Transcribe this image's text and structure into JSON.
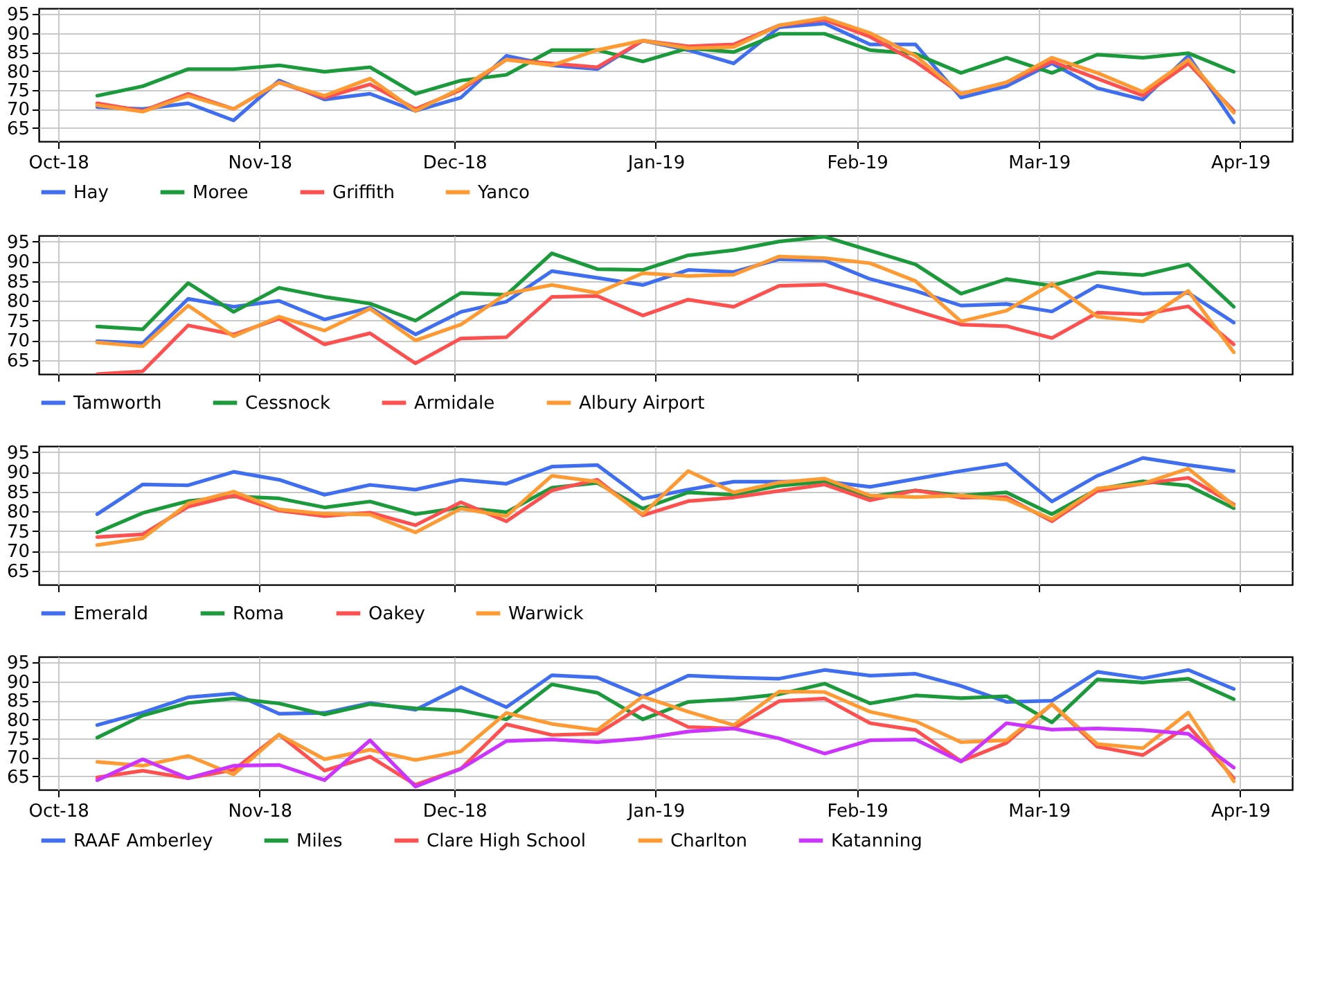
{
  "chart_data": [
    {
      "type": "line",
      "x": [
        "2018-10-07",
        "2018-10-14",
        "2018-10-21",
        "2018-10-28",
        "2018-11-04",
        "2018-11-11",
        "2018-11-18",
        "2018-11-25",
        "2018-12-02",
        "2018-12-09",
        "2018-12-16",
        "2018-12-23",
        "2018-12-30",
        "2019-01-06",
        "2019-01-13",
        "2019-01-20",
        "2019-01-27",
        "2019-02-03",
        "2019-02-10",
        "2019-02-17",
        "2019-02-24",
        "2019-03-03",
        "2019-03-10",
        "2019-03-17",
        "2019-03-24",
        "2019-03-31"
      ],
      "series": [
        {
          "name": "Hay",
          "color": "#3f6ff0",
          "values": [
            70.5,
            70,
            71.5,
            67,
            77.5,
            72.5,
            74,
            69.5,
            73,
            84,
            81.5,
            80.5,
            88,
            85.5,
            82,
            91.5,
            92.5,
            87,
            87,
            73,
            76,
            82,
            75.5,
            72.5,
            84,
            66.5
          ]
        },
        {
          "name": "Moree",
          "color": "#1a9a3a",
          "values": [
            73.5,
            76,
            80.5,
            80.5,
            81.5,
            79.8,
            81,
            74,
            77.5,
            79,
            85.5,
            85.5,
            82.5,
            86,
            85,
            89.8,
            89.8,
            85.5,
            84.5,
            79.5,
            83.5,
            79.5,
            84.3,
            83.5,
            84.7,
            79.8
          ]
        },
        {
          "name": "Griffith",
          "color": "#ff5050",
          "values": [
            71.5,
            69.5,
            74,
            70,
            77,
            73,
            76.5,
            70,
            75,
            83,
            82,
            81,
            88,
            86.5,
            87,
            92,
            93.5,
            89,
            82.5,
            74,
            77,
            82.5,
            78,
            73.5,
            82,
            69.5
          ]
        },
        {
          "name": "Yanco",
          "color": "#ff9a33",
          "values": [
            71,
            69.3,
            73.5,
            70,
            77,
            73.5,
            78,
            69.5,
            75.5,
            83,
            81.5,
            85.5,
            88,
            86,
            86.3,
            92,
            94,
            90,
            84,
            74,
            77,
            83.5,
            79.5,
            74.5,
            83,
            69
          ]
        }
      ],
      "xlim": [
        "2018-09-28",
        "2019-04-09"
      ],
      "ylim": [
        61.5,
        96.5
      ],
      "xticks": [
        {
          "value": "2018-10-01",
          "label": "Oct-18"
        },
        {
          "value": "2018-11-01",
          "label": "Nov-18"
        },
        {
          "value": "2018-12-01",
          "label": "Dec-18"
        },
        {
          "value": "2019-01-01",
          "label": "Jan-19"
        },
        {
          "value": "2019-02-01",
          "label": "Feb-19"
        },
        {
          "value": "2019-03-01",
          "label": "Mar-19"
        },
        {
          "value": "2019-04-01",
          "label": "Apr-19"
        }
      ],
      "yticks": [
        65,
        70,
        75,
        80,
        85,
        90,
        95
      ],
      "grid": true,
      "legend": "bottom"
    },
    {
      "type": "line",
      "x": [
        "2018-10-07",
        "2018-10-14",
        "2018-10-21",
        "2018-10-28",
        "2018-11-04",
        "2018-11-11",
        "2018-11-18",
        "2018-11-25",
        "2018-12-02",
        "2018-12-09",
        "2018-12-16",
        "2018-12-23",
        "2018-12-30",
        "2019-01-06",
        "2019-01-13",
        "2019-01-20",
        "2019-01-27",
        "2019-02-03",
        "2019-02-10",
        "2019-02-17",
        "2019-02-24",
        "2019-03-03",
        "2019-03-10",
        "2019-03-17",
        "2019-03-24",
        "2019-03-31"
      ],
      "series": [
        {
          "name": "Tamworth",
          "color": "#3f6ff0",
          "values": [
            69.8,
            69.3,
            80.5,
            78.5,
            80,
            75.3,
            78.3,
            71.5,
            77.2,
            79.8,
            87.5,
            85.8,
            84,
            87.8,
            87.3,
            90.5,
            90.2,
            85.5,
            82.5,
            78.8,
            79.2,
            77.3,
            83.8,
            81.8,
            82,
            74.5
          ]
        },
        {
          "name": "Cessnock",
          "color": "#1a9a3a",
          "values": [
            73.5,
            72.8,
            84.5,
            77.2,
            83.3,
            81,
            79.3,
            75,
            82,
            81.5,
            92,
            88,
            87.8,
            91.5,
            92.8,
            95,
            96.2,
            92.7,
            89.2,
            81.8,
            85.5,
            83.8,
            87.2,
            86.5,
            89.2,
            78.5
          ]
        },
        {
          "name": "Armidale",
          "color": "#ff5050",
          "values": [
            61.5,
            62.2,
            73.8,
            71.5,
            75.5,
            69,
            71.8,
            64.2,
            70.5,
            70.8,
            81,
            81.2,
            76.3,
            80.3,
            78.5,
            83.8,
            84.1,
            81,
            77.5,
            74,
            73.6,
            70.6,
            77,
            76.6,
            78.6,
            69
          ]
        },
        {
          "name": "Albury Airport",
          "color": "#ff9a33",
          "values": [
            69.5,
            68.5,
            78.8,
            71,
            76,
            72.5,
            78,
            70,
            74,
            81.8,
            84,
            82,
            87,
            86.3,
            86.6,
            91.2,
            90.8,
            89.5,
            85,
            74.8,
            77.5,
            84.3,
            76,
            74.8,
            82.5,
            67
          ]
        }
      ],
      "xlim": [
        "2018-09-28",
        "2019-04-09"
      ],
      "ylim": [
        61.5,
        96.5
      ],
      "xticks": [
        {
          "value": "2018-10-01",
          "label": null
        },
        {
          "value": "2018-11-01",
          "label": null
        },
        {
          "value": "2018-12-01",
          "label": null
        },
        {
          "value": "2019-01-01",
          "label": null
        },
        {
          "value": "2019-02-01",
          "label": null
        },
        {
          "value": "2019-03-01",
          "label": null
        },
        {
          "value": "2019-04-01",
          "label": null
        }
      ],
      "yticks": [
        65,
        70,
        75,
        80,
        85,
        90,
        95
      ],
      "grid": true,
      "legend": "bottom",
      "tick_labels": "y"
    },
    {
      "type": "line",
      "x": [
        "2018-10-07",
        "2018-10-14",
        "2018-10-21",
        "2018-10-28",
        "2018-11-04",
        "2018-11-11",
        "2018-11-18",
        "2018-11-25",
        "2018-12-02",
        "2018-12-09",
        "2018-12-16",
        "2018-12-23",
        "2018-12-30",
        "2019-01-06",
        "2019-01-13",
        "2019-01-20",
        "2019-01-27",
        "2019-02-03",
        "2019-02-10",
        "2019-02-17",
        "2019-02-24",
        "2019-03-03",
        "2019-03-10",
        "2019-03-17",
        "2019-03-24",
        "2019-03-31"
      ],
      "series": [
        {
          "name": "Emerald",
          "color": "#3f6ff0",
          "values": [
            79.3,
            86.8,
            86.6,
            90,
            88,
            84.2,
            86.7,
            85.5,
            88,
            87,
            91.3,
            91.7,
            83.2,
            85.5,
            87.5,
            87.5,
            87.6,
            86.2,
            88.2,
            90.2,
            92,
            82.5,
            89,
            93.5,
            91.7,
            90.2
          ]
        },
        {
          "name": "Roma",
          "color": "#1a9a3a",
          "values": [
            74.7,
            79.6,
            82.6,
            83.8,
            83.3,
            81,
            82.5,
            79.3,
            81,
            79.8,
            86,
            87.2,
            80.7,
            84.8,
            84.2,
            86.5,
            87.5,
            83.7,
            85.3,
            84,
            84.8,
            79.3,
            85.6,
            87.6,
            86.5,
            80.8
          ]
        },
        {
          "name": "Oakey",
          "color": "#ff5050",
          "values": [
            73.5,
            74.2,
            81.2,
            84,
            80.2,
            78.8,
            79.7,
            76.5,
            82.3,
            77.5,
            85.3,
            88,
            79,
            82.6,
            83.5,
            85.2,
            86.8,
            82.8,
            85.3,
            83.5,
            83.6,
            77.5,
            85.2,
            87,
            88.5,
            81.8
          ]
        },
        {
          "name": "Warwick",
          "color": "#ff9a33",
          "values": [
            71.5,
            73.2,
            82,
            85,
            80.5,
            79.4,
            79.2,
            74.7,
            80.7,
            78.8,
            89,
            87.5,
            79.3,
            90.2,
            84.8,
            87.3,
            88.3,
            84,
            83.6,
            84,
            83,
            78,
            85.8,
            87,
            90.8,
            81.5
          ]
        }
      ],
      "xlim": [
        "2018-09-28",
        "2019-04-09"
      ],
      "ylim": [
        61.5,
        96.5
      ],
      "xticks": [
        {
          "value": "2018-10-01",
          "label": null
        },
        {
          "value": "2018-11-01",
          "label": null
        },
        {
          "value": "2018-12-01",
          "label": null
        },
        {
          "value": "2019-01-01",
          "label": null
        },
        {
          "value": "2019-02-01",
          "label": null
        },
        {
          "value": "2019-03-01",
          "label": null
        },
        {
          "value": "2019-04-01",
          "label": null
        }
      ],
      "yticks": [
        65,
        70,
        75,
        80,
        85,
        90,
        95
      ],
      "grid": true,
      "legend": "bottom",
      "tick_labels": "y"
    },
    {
      "type": "line",
      "x": [
        "2018-10-07",
        "2018-10-14",
        "2018-10-21",
        "2018-10-28",
        "2018-11-04",
        "2018-11-11",
        "2018-11-18",
        "2018-11-25",
        "2018-12-02",
        "2018-12-09",
        "2018-12-16",
        "2018-12-23",
        "2018-12-30",
        "2019-01-06",
        "2019-01-13",
        "2019-01-20",
        "2019-01-27",
        "2019-02-03",
        "2019-02-10",
        "2019-02-17",
        "2019-02-24",
        "2019-03-03",
        "2019-03-10",
        "2019-03-17",
        "2019-03-24",
        "2019-03-31"
      ],
      "series": [
        {
          "name": "RAAF Amberley",
          "color": "#3f6ff0",
          "values": [
            78.5,
            81.8,
            85.8,
            86.8,
            81.5,
            81.7,
            84.3,
            82.5,
            88.5,
            83.2,
            91.6,
            91,
            86,
            91.5,
            91,
            90.7,
            93,
            91.5,
            92,
            88.8,
            84.6,
            84.9,
            92.5,
            90.8,
            93,
            88
          ]
        },
        {
          "name": "Miles",
          "color": "#1a9a3a",
          "values": [
            75.2,
            81,
            84.3,
            85.5,
            84.2,
            81.3,
            84,
            82.9,
            82.3,
            80,
            89.2,
            87,
            80,
            84.6,
            85.3,
            86.6,
            89.4,
            84.2,
            86.3,
            85.6,
            86.1,
            79.2,
            90.5,
            89.7,
            90.7,
            85.3
          ]
        },
        {
          "name": "Clare High School",
          "color": "#ff5050",
          "values": [
            64.7,
            66.5,
            64.5,
            66.7,
            76,
            66.5,
            70.2,
            62.8,
            67,
            78.7,
            75.9,
            76.2,
            83.6,
            78,
            77.6,
            84.8,
            85.5,
            79,
            77.2,
            69,
            73.8,
            84,
            72.8,
            70.6,
            78.3,
            64.5
          ]
        },
        {
          "name": "Charlton",
          "color": "#ff9a33",
          "values": [
            68.8,
            67.8,
            70.4,
            65.5,
            76,
            69.5,
            72,
            69.3,
            71.6,
            81.7,
            78.8,
            77.2,
            86,
            82,
            78.5,
            87.3,
            87.2,
            82,
            79.5,
            74,
            74.5,
            84,
            73.5,
            72.4,
            81.8,
            63.7
          ]
        },
        {
          "name": "Katanning",
          "color": "#cc33ff",
          "values": [
            64,
            69.5,
            64.5,
            67.8,
            68,
            64,
            74.5,
            62.3,
            67,
            74.3,
            74.7,
            74,
            75,
            76.8,
            77.6,
            75,
            71,
            74.5,
            74.7,
            68.9,
            79,
            77.3,
            77.6,
            77.2,
            76.2,
            67.3
          ]
        }
      ],
      "xlim": [
        "2018-09-28",
        "2019-04-09"
      ],
      "ylim": [
        61.5,
        96.5
      ],
      "xticks": [
        {
          "value": "2018-10-01",
          "label": "Oct-18"
        },
        {
          "value": "2018-11-01",
          "label": "Nov-18"
        },
        {
          "value": "2018-12-01",
          "label": "Dec-18"
        },
        {
          "value": "2019-01-01",
          "label": "Jan-19"
        },
        {
          "value": "2019-02-01",
          "label": "Feb-19"
        },
        {
          "value": "2019-03-01",
          "label": "Mar-19"
        },
        {
          "value": "2019-04-01",
          "label": "Apr-19"
        }
      ],
      "yticks": [
        65,
        70,
        75,
        80,
        85,
        90,
        95
      ],
      "grid": true,
      "legend": "bottom"
    }
  ]
}
